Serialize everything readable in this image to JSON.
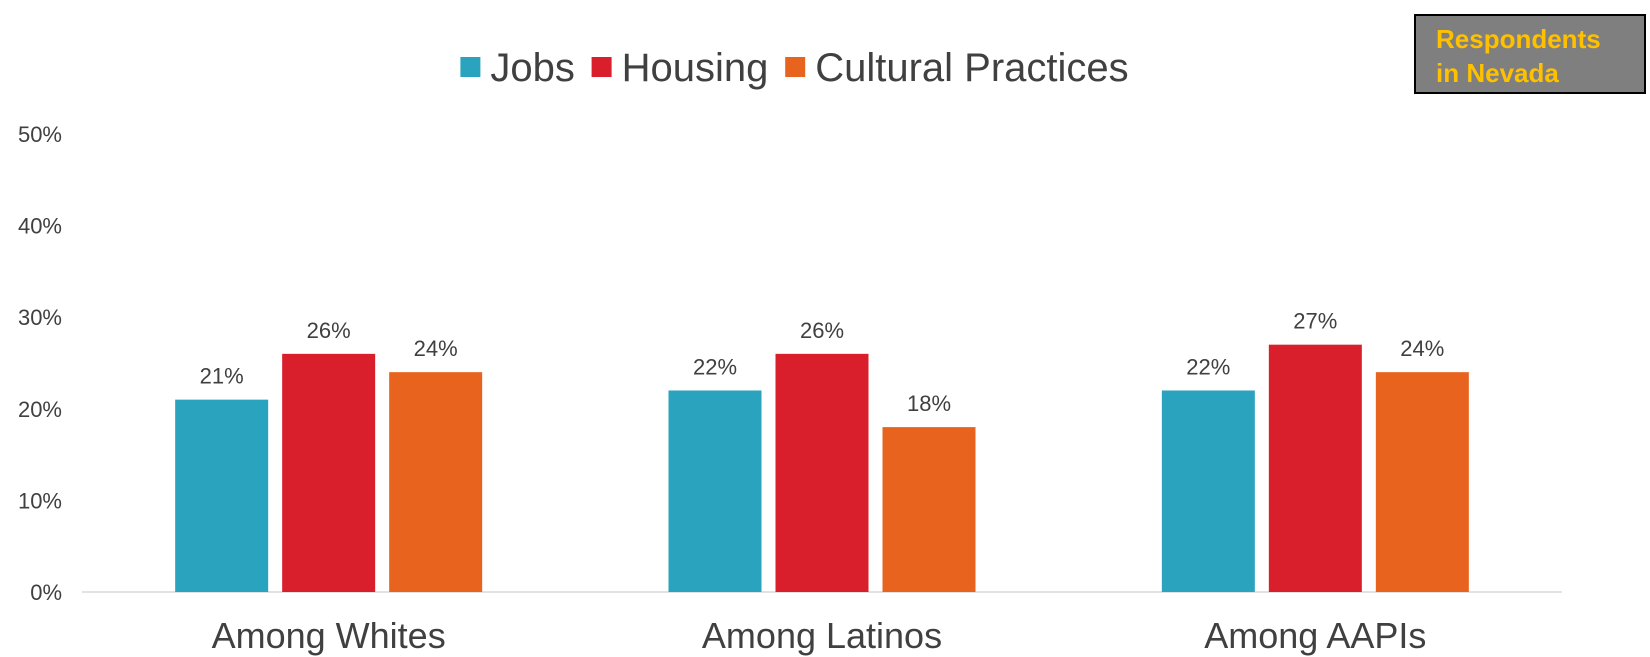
{
  "badge": {
    "line1": "Respondents",
    "line2": "in Nevada"
  },
  "colors": {
    "Jobs": "#2aa3bf",
    "Housing": "#d91f2b",
    "Cultural Practices": "#e8631e"
  },
  "chart_data": {
    "type": "bar",
    "categories": [
      "Among Whites",
      "Among Latinos",
      "Among AAPIs"
    ],
    "series": [
      {
        "name": "Jobs",
        "values": [
          21,
          22,
          22
        ]
      },
      {
        "name": "Housing",
        "values": [
          26,
          26,
          27
        ]
      },
      {
        "name": "Cultural Practices",
        "values": [
          24,
          18,
          24
        ]
      }
    ],
    "data_labels": [
      [
        "21%",
        "22%",
        "22%"
      ],
      [
        "26%",
        "26%",
        "27%"
      ],
      [
        "24%",
        "18%",
        "24%"
      ]
    ],
    "y_ticks": [
      "0%",
      "10%",
      "20%",
      "30%",
      "40%",
      "50%"
    ],
    "ylim": [
      0,
      50
    ],
    "grid": false,
    "legend_position": "top",
    "title": "",
    "xlabel": "",
    "ylabel": ""
  }
}
